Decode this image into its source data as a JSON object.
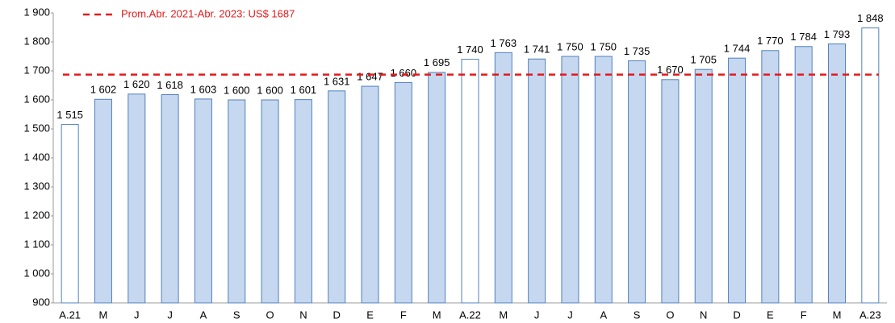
{
  "chart_data": {
    "type": "bar",
    "categories": [
      "A.21",
      "M",
      "J",
      "J",
      "A",
      "S",
      "O",
      "N",
      "D",
      "E",
      "F",
      "M",
      "A.22",
      "M",
      "J",
      "J",
      "A",
      "S",
      "O",
      "N",
      "D",
      "E",
      "F",
      "M",
      "A.23"
    ],
    "values": [
      1515,
      1602,
      1620,
      1618,
      1603,
      1600,
      1600,
      1601,
      1631,
      1647,
      1660,
      1695,
      1740,
      1763,
      1741,
      1750,
      1750,
      1735,
      1670,
      1705,
      1744,
      1770,
      1784,
      1793,
      1848
    ],
    "value_labels": [
      "1 515",
      "1 602",
      "1 620",
      "1 618",
      "1 603",
      "1 600",
      "1 600",
      "1 601",
      "1 631",
      "1 647",
      "1 660",
      "1 695",
      "1 740",
      "1 763",
      "1 741",
      "1 750",
      "1 750",
      "1 735",
      "1 670",
      "1 705",
      "1 744",
      "1 770",
      "1 784",
      "1 793",
      "1 848"
    ],
    "colors": [
      "#ffffff",
      "#c6d7f0",
      "#c6d7f0",
      "#c6d7f0",
      "#c6d7f0",
      "#c6d7f0",
      "#c6d7f0",
      "#c6d7f0",
      "#c6d7f0",
      "#c6d7f0",
      "#c6d7f0",
      "#c6d7f0",
      "#ffffff",
      "#c6d7f0",
      "#c6d7f0",
      "#c6d7f0",
      "#c6d7f0",
      "#c6d7f0",
      "#c6d7f0",
      "#c6d7f0",
      "#c6d7f0",
      "#c6d7f0",
      "#c6d7f0",
      "#c6d7f0",
      "#ffffff"
    ],
    "edge_color": "#4f81bd",
    "ylim": [
      900,
      1900
    ],
    "yticks": [
      {
        "value": 900,
        "label": "900"
      },
      {
        "value": 1000,
        "label": "1 000"
      },
      {
        "value": 1100,
        "label": "1 100"
      },
      {
        "value": 1200,
        "label": "1 200"
      },
      {
        "value": 1300,
        "label": "1 300"
      },
      {
        "value": 1400,
        "label": "1 400"
      },
      {
        "value": 1500,
        "label": "1 500"
      },
      {
        "value": 1600,
        "label": "1 600"
      },
      {
        "value": 1700,
        "label": "1 700"
      },
      {
        "value": 1800,
        "label": "1 800"
      },
      {
        "value": 1900,
        "label": "1 900"
      }
    ],
    "reference_line": {
      "value": 1687,
      "label": "Prom.Abr. 2021-Abr. 2023: US$ 1687",
      "color": "#e31a1c"
    }
  }
}
